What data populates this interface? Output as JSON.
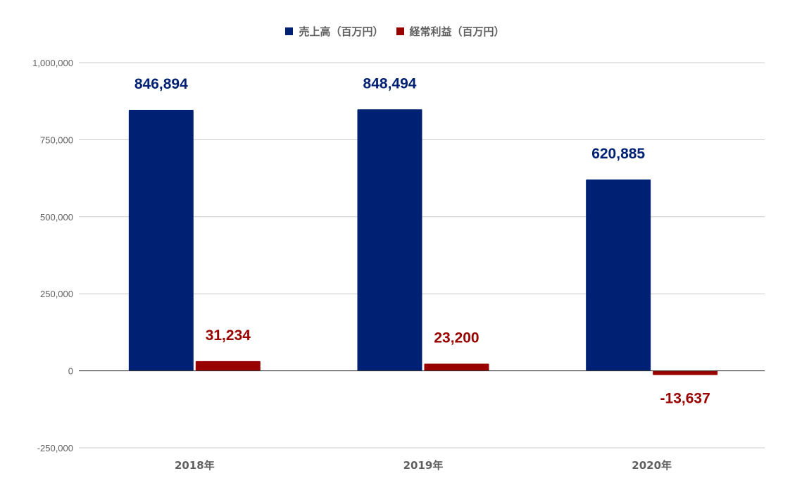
{
  "chart_data": {
    "type": "bar",
    "categories": [
      "2018年",
      "2019年",
      "2020年"
    ],
    "series": [
      {
        "name": "売上高（百万円）",
        "color": "#002173",
        "values": [
          846894,
          848494,
          620885
        ],
        "labels": [
          "846,894",
          "848,494",
          "620,885"
        ]
      },
      {
        "name": "経常利益（百万円）",
        "color": "#990000",
        "values": [
          31234,
          23200,
          -13637
        ],
        "labels": [
          "31,234",
          "23,200",
          "-13,637"
        ]
      }
    ],
    "y_ticks": [
      {
        "value": -250000,
        "label": "-250,000"
      },
      {
        "value": 0,
        "label": "0"
      },
      {
        "value": 250000,
        "label": "250,000"
      },
      {
        "value": 500000,
        "label": "500,000"
      },
      {
        "value": 750000,
        "label": "750,000"
      },
      {
        "value": 1000000,
        "label": "1,000,000"
      }
    ],
    "ylim": [
      -250000,
      1000000
    ],
    "grid": true,
    "legend_position": "top"
  }
}
